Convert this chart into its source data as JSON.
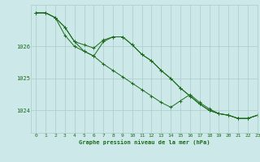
{
  "title": "Graphe pression niveau de la mer (hPa)",
  "xlabel": "Graphe pression niveau de la mer (hPa)",
  "x_ticks": [
    0,
    1,
    2,
    3,
    4,
    5,
    6,
    7,
    8,
    9,
    10,
    11,
    12,
    13,
    14,
    15,
    16,
    17,
    18,
    19,
    20,
    21,
    22,
    23
  ],
  "ylim": [
    1023.3,
    1027.3
  ],
  "xlim": [
    -0.5,
    23
  ],
  "ytick_values": [
    1024,
    1025,
    1026
  ],
  "background_color": "#cce8e8",
  "grid_color": "#aacccc",
  "line_color": "#1a6b1a",
  "line1": [
    1027.05,
    1027.05,
    1026.9,
    1026.6,
    1026.15,
    1026.05,
    1025.95,
    1026.2,
    1026.3,
    1026.3,
    1026.05,
    1025.75,
    1025.55,
    1025.25,
    1025.0,
    1024.7,
    1024.45,
    1024.2,
    1024.0,
    1023.9,
    1023.85,
    1023.75,
    1023.75,
    1023.85
  ],
  "line2": [
    1027.05,
    1027.05,
    1026.9,
    1026.35,
    1026.0,
    1025.85,
    1025.7,
    1025.45,
    1025.25,
    1025.05,
    1024.85,
    1024.65,
    1024.45,
    1024.25,
    1024.1,
    1024.3,
    1024.5,
    1024.25,
    1024.05,
    1023.9,
    1023.85,
    1023.75,
    1023.75,
    1023.85
  ],
  "line3": [
    1027.05,
    1027.05,
    1026.9,
    1026.6,
    1026.15,
    1025.85,
    1025.7,
    1026.15,
    1026.3,
    1026.3,
    1026.05,
    1025.75,
    1025.55,
    1025.25,
    1025.0,
    1024.7,
    1024.45,
    1024.2,
    1024.0,
    1023.9,
    1023.85,
    1023.75,
    1023.75,
    1023.85
  ],
  "tick_fontsize": 4.5,
  "label_fontsize": 5.0,
  "line_width": 0.7,
  "marker_size": 2.5
}
